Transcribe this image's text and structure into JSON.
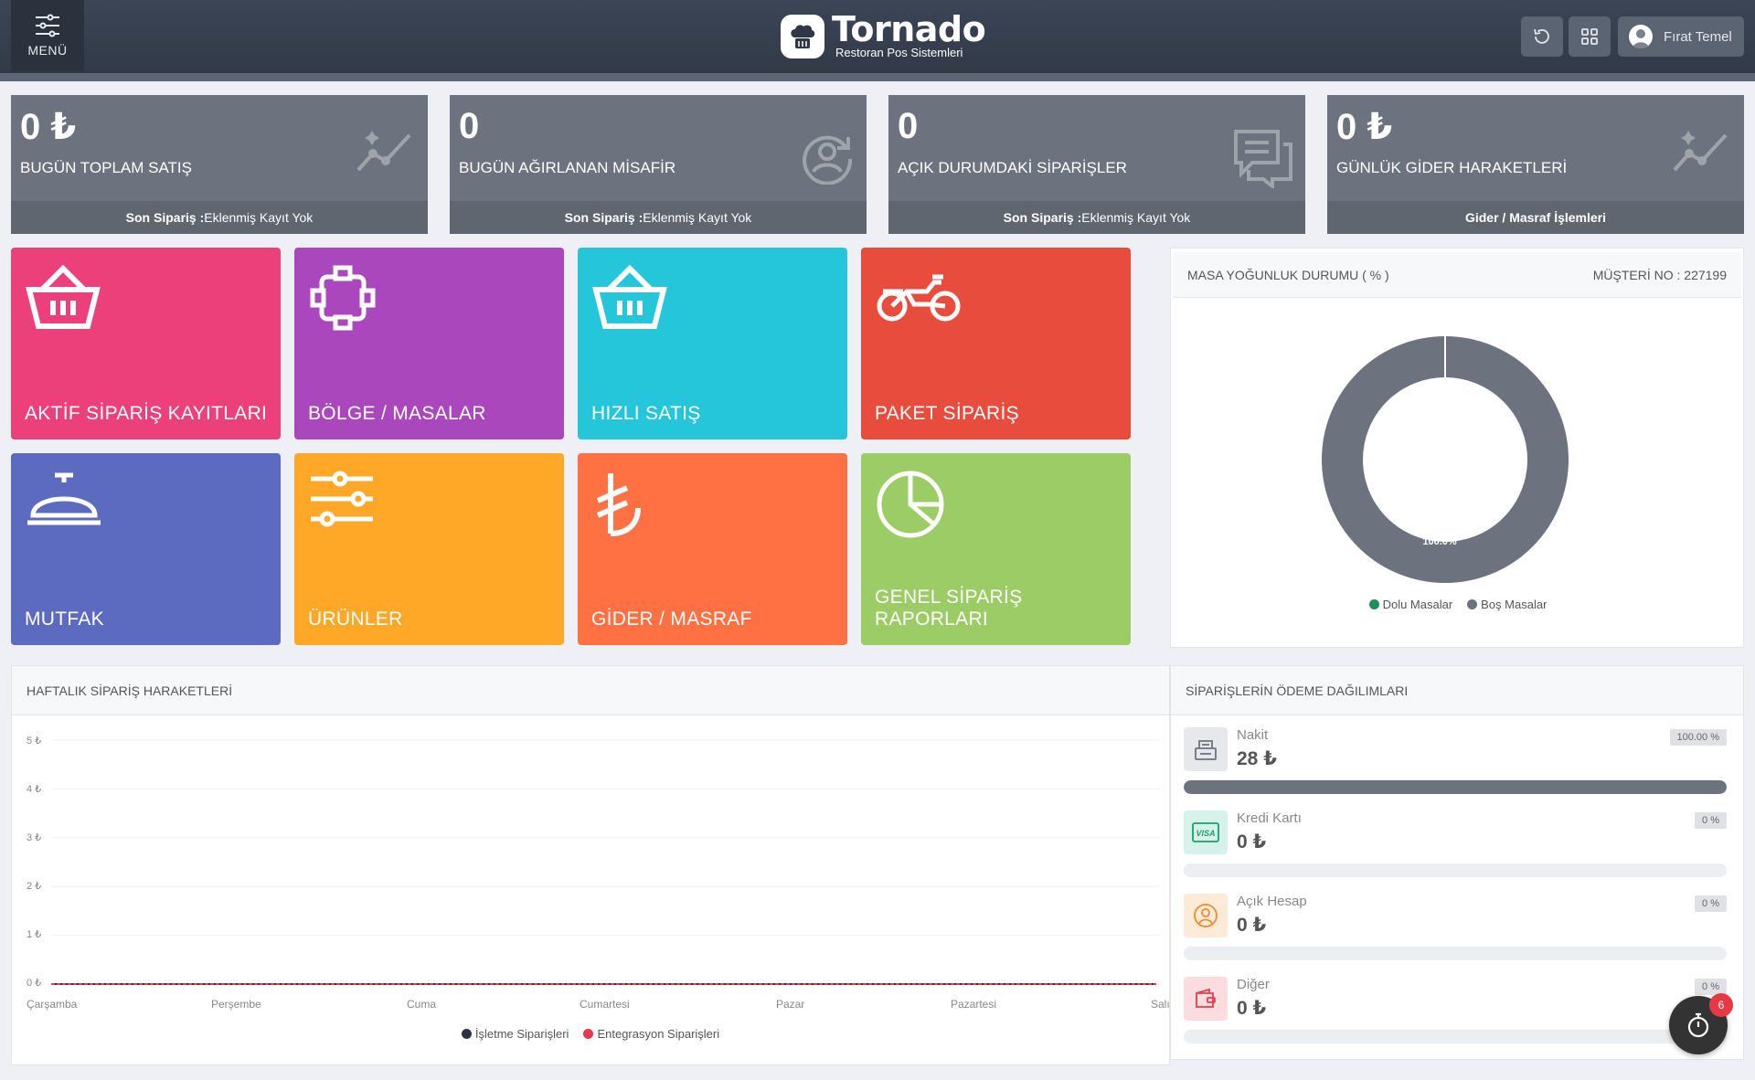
{
  "header": {
    "menu_label": "MENÜ",
    "brand_name": "Tornado",
    "brand_subtitle": "Restoran Pos Sistemleri",
    "user_name": "Fırat Temel"
  },
  "stats": [
    {
      "value": "0 ₺",
      "label": "BUGÜN TOPLAM SATIŞ",
      "footer_bold": "Son Sipariş :",
      "footer_text": " Eklenmiş Kayıt Yok",
      "icon": "trend-line-icon"
    },
    {
      "value": "0",
      "label": "BUGÜN AĞIRLANAN MİSAFİR",
      "footer_bold": "Son Sipariş :",
      "footer_text": " Eklenmiş Kayıt Yok",
      "icon": "guest-refresh-icon"
    },
    {
      "value": "0",
      "label": "AÇIK DURUMDAKİ SİPARİŞLER",
      "footer_bold": "Son Sipariş :",
      "footer_text": " Eklenmiş Kayıt Yok",
      "icon": "chat-list-icon"
    },
    {
      "value": "0 ₺",
      "label": "GÜNLÜK GİDER HARAKETLERİ",
      "footer_bold": "Gider / Masraf İşlemleri",
      "footer_text": "",
      "icon": "trend-line-icon"
    }
  ],
  "tiles": [
    {
      "label": "AKTİF SİPARİŞ KAYITLARI",
      "color": "#ec407a",
      "icon": "basket-icon"
    },
    {
      "label": "BÖLGE / MASALAR",
      "color": "#ab47bc",
      "icon": "table-layout-icon"
    },
    {
      "label": "HIZLI SATIŞ",
      "color": "#26c6da",
      "icon": "basket-icon"
    },
    {
      "label": "PAKET SİPARİŞ",
      "color": "#e84c3d",
      "icon": "motorcycle-icon"
    },
    {
      "label": "MUTFAK",
      "color": "#5c6bc0",
      "icon": "cloche-icon"
    },
    {
      "label": "ÜRÜNLER",
      "color": "#ffa726",
      "icon": "sliders-icon"
    },
    {
      "label": "GİDER / MASRAF",
      "color": "#ff7043",
      "icon": "lira-icon"
    },
    {
      "label": "GENEL SİPARİŞ RAPORLARI",
      "color": "#9ccc65",
      "icon": "pie-chart-icon"
    }
  ],
  "occupancy": {
    "title": "MASA YOĞUNLUK DURUMU ( % )",
    "customer_no": "MÜŞTERİ NO : 227199",
    "slice_label": "100.0%",
    "legend": [
      {
        "label": "Dolu Masalar",
        "color": "#1e8e5a"
      },
      {
        "label": "Boş Masalar",
        "color": "#6c737e"
      }
    ]
  },
  "weekly": {
    "title": "HAFTALIK SİPARİŞ HARAKETLERİ",
    "legend": [
      {
        "label": "İşletme Siparişleri",
        "color": "#2b3341"
      },
      {
        "label": "Entegrasyon Siparişleri",
        "color": "#e53950"
      }
    ]
  },
  "payments": {
    "title": "SİPARİŞLERİN ÖDEME DAĞILIMLARI",
    "items": [
      {
        "name": "Nakit",
        "amount": "28 ₺",
        "percent_label": "100.00 %",
        "fraction": 1.0,
        "icon": "cash-register-icon",
        "icon_bg": "#e6e8eb",
        "icon_color": "#6c737e"
      },
      {
        "name": "Kredi Kartı",
        "amount": "0 ₺",
        "percent_label": "0 %",
        "fraction": 0,
        "icon": "visa-card-icon",
        "icon_bg": "#d5f3ea",
        "icon_color": "#1e9e6a"
      },
      {
        "name": "Açık Hesap",
        "amount": "0 ₺",
        "percent_label": "0 %",
        "fraction": 0,
        "icon": "user-circle-icon",
        "icon_bg": "#fdebd8",
        "icon_color": "#f08a2c"
      },
      {
        "name": "Diğer",
        "amount": "0 ₺",
        "percent_label": "0 %",
        "fraction": 0,
        "icon": "wallet-icon",
        "icon_bg": "#fbdde0",
        "icon_color": "#e0414f"
      }
    ]
  },
  "timer_badge": "6",
  "chart_data": [
    {
      "type": "line",
      "title": "HAFTALIK SİPARİŞ HARAKETLERİ",
      "categories": [
        "Çarşamba",
        "Perşembe",
        "Cuma",
        "Cumartesi",
        "Pazar",
        "Pazartesi",
        "Salı"
      ],
      "y_tick_labels": [
        "5 ₺",
        "4 ₺",
        "3 ₺",
        "2 ₺",
        "1 ₺",
        "0 ₺"
      ],
      "ylim": [
        0,
        5
      ],
      "grid": true,
      "legend_position": "bottom",
      "series": [
        {
          "name": "İşletme Siparişleri",
          "values": [
            0,
            0,
            0,
            0,
            0,
            0,
            0
          ]
        },
        {
          "name": "Entegrasyon Siparişleri",
          "values": [
            0,
            0,
            0,
            0,
            0,
            0,
            0
          ]
        }
      ]
    },
    {
      "type": "pie",
      "title": "MASA YOĞUNLUK DURUMU ( % )",
      "labels": [
        "Dolu Masalar",
        "Boş Masalar"
      ],
      "values": [
        0,
        100
      ],
      "data_labels": [
        "",
        "100.0%"
      ],
      "legend_position": "bottom"
    }
  ]
}
